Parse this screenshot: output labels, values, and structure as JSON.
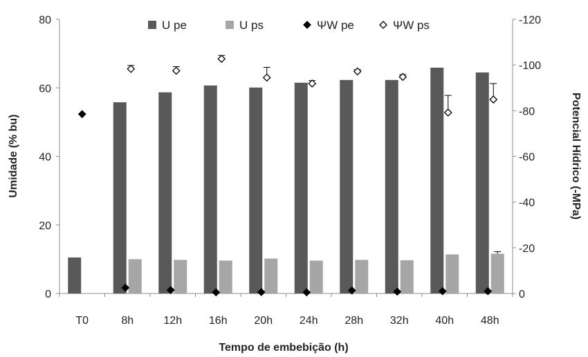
{
  "chart_data": {
    "type": "bar",
    "title": "",
    "xlabel": "Tempo de embebição (h)",
    "ylabel": "Umidade (% bu)",
    "y2label": "Potencial Hídrico (-MPa)",
    "categories": [
      "T0",
      "8h",
      "12h",
      "16h",
      "20h",
      "24h",
      "28h",
      "32h",
      "40h",
      "48h"
    ],
    "ylim": [
      0,
      80
    ],
    "yticks": [
      "0",
      "20",
      "40",
      "60",
      "80"
    ],
    "y2lim": [
      0,
      -120
    ],
    "y2ticks": [
      "0",
      "-20",
      "-40",
      "-60",
      "-80",
      "-100",
      "-120"
    ],
    "grid": false,
    "legend_position": "top",
    "series": [
      {
        "name": "U pe",
        "axis": "left",
        "kind": "bar",
        "color": "#595959",
        "values": [
          10.5,
          55.8,
          58.7,
          60.7,
          60.1,
          61.5,
          62.3,
          62.3,
          65.9,
          64.5
        ],
        "errors": [
          0,
          0,
          0,
          0,
          0,
          0,
          0,
          0,
          0,
          0
        ]
      },
      {
        "name": "U ps",
        "axis": "left",
        "kind": "bar",
        "color": "#a6a6a6",
        "values": [
          null,
          10.0,
          9.8,
          9.6,
          10.2,
          9.6,
          9.8,
          9.7,
          11.4,
          11.6
        ],
        "errors": [
          0,
          0,
          0,
          0,
          0,
          0,
          0,
          0,
          0,
          0.6
        ]
      },
      {
        "name": "ΨW pe",
        "axis": "right",
        "kind": "marker",
        "marker": "filled-diamond",
        "color": "#000000",
        "values": [
          -78.5,
          -2.5,
          -1.5,
          -0.5,
          -0.6,
          -0.5,
          -1.3,
          -0.8,
          -1.0,
          -1.0
        ],
        "errors": [
          0,
          0,
          0,
          0,
          0,
          0,
          0,
          0,
          0,
          0
        ]
      },
      {
        "name": "ΨW ps",
        "axis": "right",
        "kind": "marker",
        "marker": "open-diamond",
        "color": "#000000",
        "values": [
          null,
          -98.3,
          -97.5,
          -102.7,
          -94.5,
          -91.9,
          -97.2,
          -94.8,
          -79.2,
          -84.9
        ],
        "errors": [
          0,
          1.5,
          1.8,
          1.5,
          4.5,
          1.3,
          0.8,
          1.0,
          7.5,
          7.0
        ]
      }
    ]
  }
}
